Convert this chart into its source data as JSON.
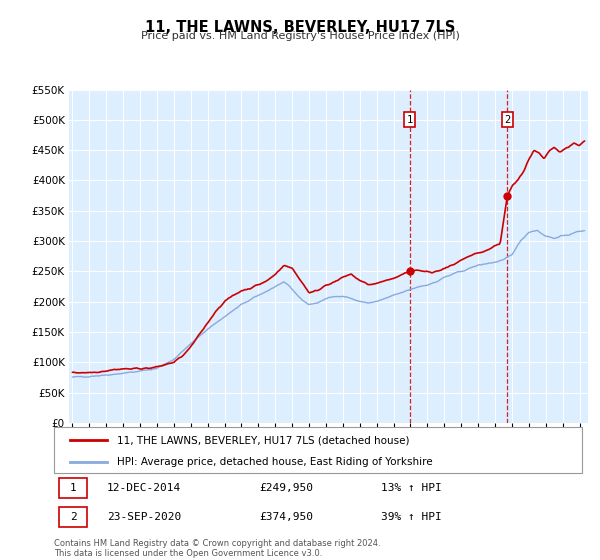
{
  "title": "11, THE LAWNS, BEVERLEY, HU17 7LS",
  "subtitle": "Price paid vs. HM Land Registry's House Price Index (HPI)",
  "hpi_label": "HPI: Average price, detached house, East Riding of Yorkshire",
  "price_label": "11, THE LAWNS, BEVERLEY, HU17 7LS (detached house)",
  "annotation1": {
    "label": "1",
    "date": "12-DEC-2014",
    "price": "£249,950",
    "hpi": "13% ↑ HPI",
    "x_year": 2014.95,
    "y_price": 249950
  },
  "annotation2": {
    "label": "2",
    "date": "23-SEP-2020",
    "price": "£374,950",
    "hpi": "39% ↑ HPI",
    "x_year": 2020.73,
    "y_price": 374950
  },
  "footer1": "Contains HM Land Registry data © Crown copyright and database right 2024.",
  "footer2": "This data is licensed under the Open Government Licence v3.0.",
  "price_color": "#cc0000",
  "hpi_color": "#88aadd",
  "bg_color": "#ddeeff",
  "grid_color": "#ffffff",
  "annotation_box_color": "#cc0000",
  "ylim": [
    0,
    550000
  ],
  "xlim_start": 1994.8,
  "xlim_end": 2025.5
}
